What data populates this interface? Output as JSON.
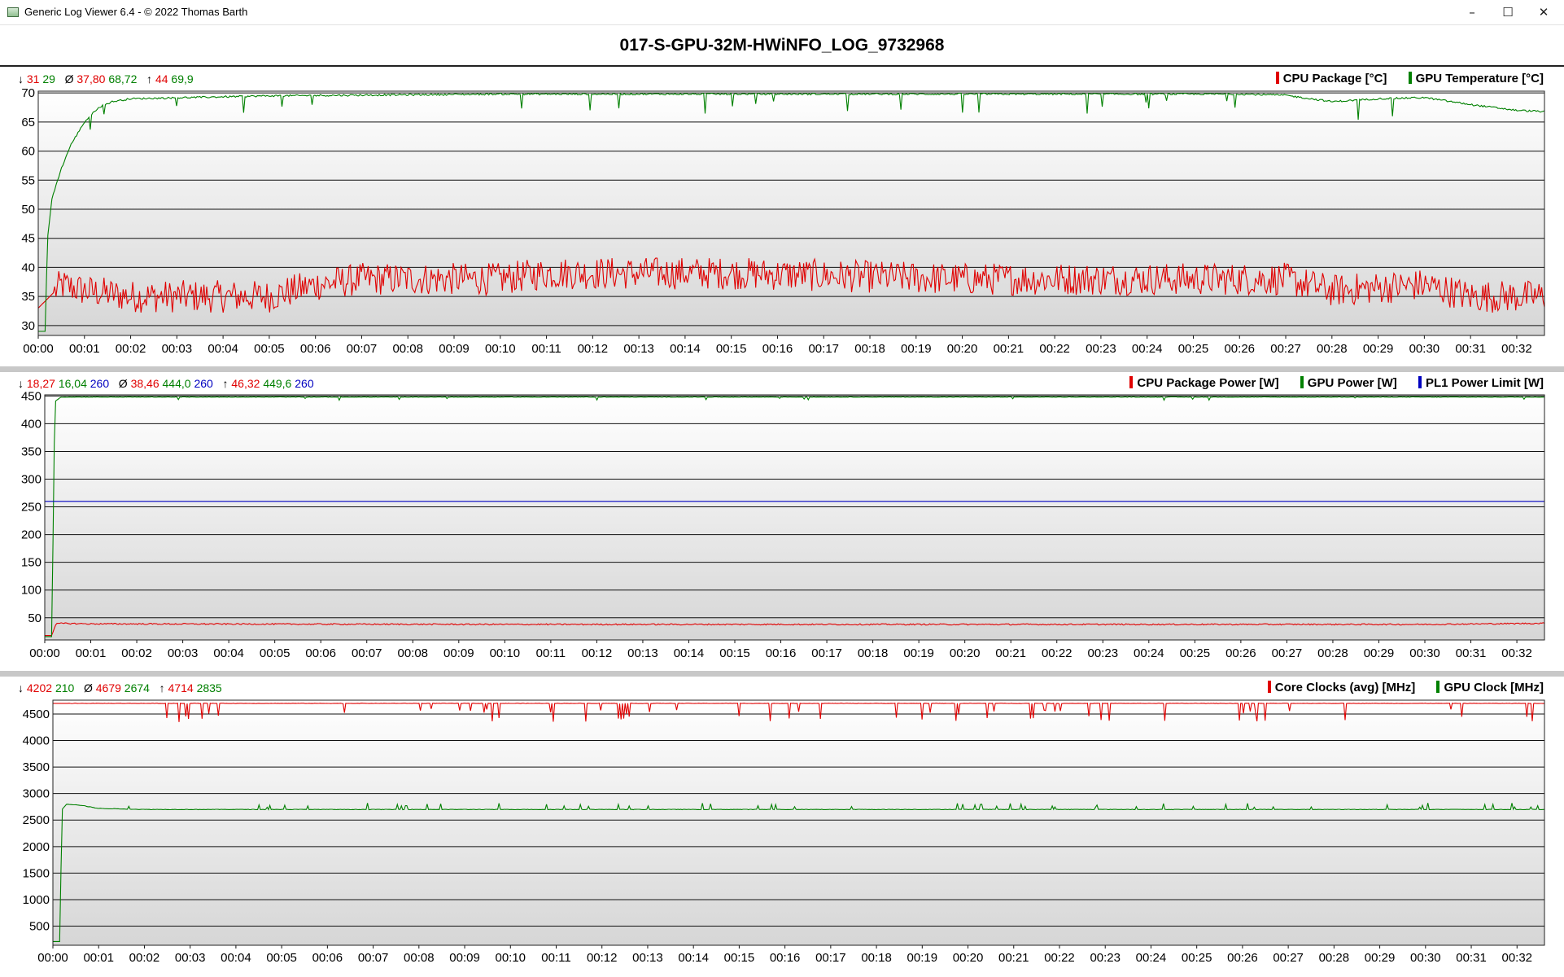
{
  "window": {
    "title": "Generic Log Viewer 6.4 - © 2022 Thomas Barth",
    "buttons": {
      "minimize": "–",
      "maximize": "☐",
      "close": "✕"
    }
  },
  "log_title": "017-S-GPU-32M-HWiNFO_LOG_9732968",
  "colors": {
    "red": "#e00000",
    "green": "#008000",
    "blue": "#0000c0"
  },
  "panels": [
    {
      "stats": {
        "min_symbol": "↓",
        "min": [
          "31",
          "29"
        ],
        "avg_symbol": "Ø",
        "avg": [
          "37,80",
          "68,72"
        ],
        "max_symbol": "↑",
        "max": [
          "44",
          "69,9"
        ]
      },
      "legend": [
        "CPU Package [°C]",
        "GPU Temperature [°C]"
      ]
    },
    {
      "stats": {
        "min_symbol": "↓",
        "min": [
          "18,27",
          "16,04",
          "260"
        ],
        "avg_symbol": "Ø",
        "avg": [
          "38,46",
          "444,0",
          "260"
        ],
        "max_symbol": "↑",
        "max": [
          "46,32",
          "449,6",
          "260"
        ]
      },
      "legend": [
        "CPU Package Power [W]",
        "GPU Power [W]",
        "PL1 Power Limit [W]"
      ]
    },
    {
      "stats": {
        "min_symbol": "↓",
        "min": [
          "4202",
          "210"
        ],
        "avg_symbol": "Ø",
        "avg": [
          "4679",
          "2674"
        ],
        "max_symbol": "↑",
        "max": [
          "4714",
          "2835"
        ]
      },
      "legend": [
        "Core Clocks (avg) [MHz]",
        "GPU Clock [MHz]"
      ]
    }
  ],
  "chart_data": [
    {
      "type": "line",
      "x_label_unit": "mm:ss",
      "xlim": [
        0,
        32.6
      ],
      "ylim": [
        28.3,
        70.3
      ],
      "yticks": [
        30,
        35,
        40,
        45,
        50,
        55,
        60,
        65,
        70
      ],
      "xticks": [
        "00:00",
        "00:01",
        "00:02",
        "00:03",
        "00:04",
        "00:05",
        "00:06",
        "00:07",
        "00:08",
        "00:09",
        "00:10",
        "00:11",
        "00:12",
        "00:13",
        "00:14",
        "00:15",
        "00:16",
        "00:17",
        "00:18",
        "00:19",
        "00:20",
        "00:21",
        "00:22",
        "00:23",
        "00:24",
        "00:25",
        "00:26",
        "00:27",
        "00:28",
        "00:29",
        "00:30",
        "00:31",
        "00:32"
      ],
      "grid": true,
      "legend_position": "top-right",
      "series": [
        {
          "name": "CPU Package [°C]",
          "color": "#e00000",
          "min": 31,
          "avg": 37.8,
          "max": 44,
          "x": [
            0,
            0.5,
            1,
            2,
            3,
            5,
            6,
            7,
            10,
            11,
            15,
            20,
            25,
            27,
            28,
            30,
            31,
            32.6
          ],
          "y": [
            33,
            37,
            36,
            35,
            35,
            35,
            37,
            38,
            38,
            39,
            39,
            38,
            38,
            38,
            36,
            37,
            35,
            35
          ]
        },
        {
          "name": "GPU Temperature [°C]",
          "color": "#008000",
          "min": 29,
          "avg": 68.72,
          "max": 69.9,
          "x": [
            0,
            0.15,
            0.2,
            0.3,
            0.5,
            0.7,
            1,
            1.3,
            1.6,
            2,
            5,
            10,
            20,
            26,
            27,
            28,
            29,
            30,
            31,
            32,
            32.6
          ],
          "y": [
            29,
            29,
            45,
            52,
            57,
            61,
            65,
            67.5,
            68.5,
            69,
            69.5,
            69.8,
            69.8,
            69.8,
            69.6,
            68.5,
            69,
            69.2,
            68,
            67,
            66.8
          ]
        }
      ]
    },
    {
      "type": "line",
      "x_label_unit": "mm:ss",
      "xlim": [
        0,
        32.6
      ],
      "ylim": [
        10,
        452
      ],
      "yticks": [
        50,
        100,
        150,
        200,
        250,
        300,
        350,
        400,
        450
      ],
      "xticks": [
        "00:00",
        "00:01",
        "00:02",
        "00:03",
        "00:04",
        "00:05",
        "00:06",
        "00:07",
        "00:08",
        "00:09",
        "00:10",
        "00:11",
        "00:12",
        "00:13",
        "00:14",
        "00:15",
        "00:16",
        "00:17",
        "00:18",
        "00:19",
        "00:20",
        "00:21",
        "00:22",
        "00:23",
        "00:24",
        "00:25",
        "00:26",
        "00:27",
        "00:28",
        "00:29",
        "00:30",
        "00:31",
        "00:32"
      ],
      "grid": true,
      "legend_position": "top-right",
      "series": [
        {
          "name": "CPU Package Power [W]",
          "color": "#e00000",
          "min": 18.27,
          "avg": 38.46,
          "max": 46.32,
          "x": [
            0,
            0.15,
            0.25,
            1,
            10,
            20,
            30,
            32.6
          ],
          "y": [
            18,
            18,
            40,
            39,
            38,
            38,
            38,
            40
          ]
        },
        {
          "name": "GPU Power [W]",
          "color": "#008000",
          "min": 16.04,
          "avg": 444.0,
          "max": 449.6,
          "x": [
            0,
            0.15,
            0.22,
            0.35,
            5,
            10,
            20,
            30,
            32.6
          ],
          "y": [
            16,
            16,
            440,
            448,
            448,
            448,
            448,
            448,
            448
          ]
        },
        {
          "name": "PL1 Power Limit [W]",
          "color": "#0000c0",
          "min": 260,
          "avg": 260,
          "max": 260,
          "x": [
            0,
            32.6
          ],
          "y": [
            260,
            260
          ]
        }
      ]
    },
    {
      "type": "line",
      "x_label_unit": "mm:ss",
      "xlim": [
        0,
        32.6
      ],
      "ylim": [
        140,
        4760
      ],
      "yticks": [
        500,
        1000,
        1500,
        2000,
        2500,
        3000,
        3500,
        4000,
        4500
      ],
      "xticks": [
        "00:00",
        "00:01",
        "00:02",
        "00:03",
        "00:04",
        "00:05",
        "00:06",
        "00:07",
        "00:08",
        "00:09",
        "00:10",
        "00:11",
        "00:12",
        "00:13",
        "00:14",
        "00:15",
        "00:16",
        "00:17",
        "00:18",
        "00:19",
        "00:20",
        "00:21",
        "00:22",
        "00:23",
        "00:24",
        "00:25",
        "00:26",
        "00:27",
        "00:28",
        "00:29",
        "00:30",
        "00:31",
        "00:32"
      ],
      "grid": true,
      "legend_position": "top-right",
      "series": [
        {
          "name": "Core Clocks (avg) [MHz]",
          "color": "#e00000",
          "min": 4202,
          "avg": 4679,
          "max": 4714,
          "x": [
            0,
            10,
            20,
            30,
            32.6
          ],
          "y": [
            4700,
            4700,
            4700,
            4700,
            4700
          ]
        },
        {
          "name": "GPU Clock [MHz]",
          "color": "#008000",
          "min": 210,
          "avg": 2674,
          "max": 2835,
          "x": [
            0,
            0.15,
            0.2,
            0.3,
            0.6,
            1,
            2,
            10,
            20,
            30,
            32.6
          ],
          "y": [
            210,
            210,
            2700,
            2800,
            2780,
            2720,
            2700,
            2700,
            2700,
            2700,
            2700
          ]
        }
      ]
    }
  ]
}
